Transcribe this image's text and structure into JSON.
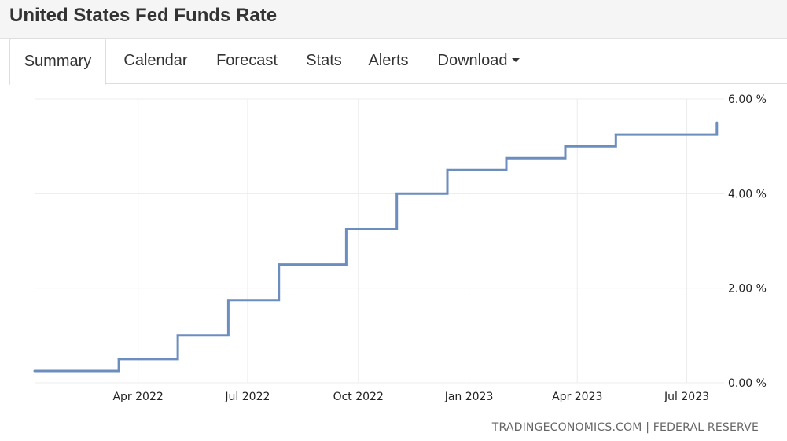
{
  "page": {
    "title": "United States Fed Funds Rate"
  },
  "tabs": [
    {
      "label": "Summary",
      "active": true
    },
    {
      "label": "Calendar",
      "active": false
    },
    {
      "label": "Forecast",
      "active": false
    },
    {
      "label": "Stats",
      "active": false
    },
    {
      "label": "Alerts",
      "active": false
    },
    {
      "label": "Download",
      "active": false,
      "has_dropdown": true
    }
  ],
  "source": "TRADINGECONOMICS.COM | FEDERAL RESERVE",
  "colors": {
    "series_line": "#6c8ebf",
    "grid": "#ececec",
    "text": "#333333"
  },
  "chart_data": {
    "type": "line",
    "step": true,
    "title": "",
    "xlabel": "",
    "ylabel": "",
    "ylim": [
      0,
      6
    ],
    "xlim": [
      "2022-01-05",
      "2023-08-01"
    ],
    "y_ticks": [
      {
        "value": 0,
        "label": "0.00 %"
      },
      {
        "value": 2,
        "label": "2.00 %"
      },
      {
        "value": 4,
        "label": "4.00 %"
      },
      {
        "value": 6,
        "label": "6.00 %"
      }
    ],
    "x_ticks": [
      {
        "date": "2022-04-01",
        "label": "Apr 2022"
      },
      {
        "date": "2022-07-01",
        "label": "Jul 2022"
      },
      {
        "date": "2022-10-01",
        "label": "Oct 2022"
      },
      {
        "date": "2023-01-01",
        "label": "Jan 2023"
      },
      {
        "date": "2023-04-01",
        "label": "Apr 2023"
      },
      {
        "date": "2023-07-01",
        "label": "Jul 2023"
      }
    ],
    "grid": true,
    "y_axis_position": "right",
    "series": [
      {
        "x": [
          "2022-01-05",
          "2022-03-16",
          "2022-05-04",
          "2022-06-15",
          "2022-07-27",
          "2022-09-21",
          "2022-11-02",
          "2022-12-14",
          "2023-02-01",
          "2023-03-22",
          "2023-05-03",
          "2023-07-26"
        ],
        "values": [
          0.25,
          0.5,
          1.0,
          1.75,
          2.5,
          3.25,
          4.0,
          4.5,
          4.75,
          5.0,
          5.25,
          5.5
        ]
      }
    ]
  }
}
